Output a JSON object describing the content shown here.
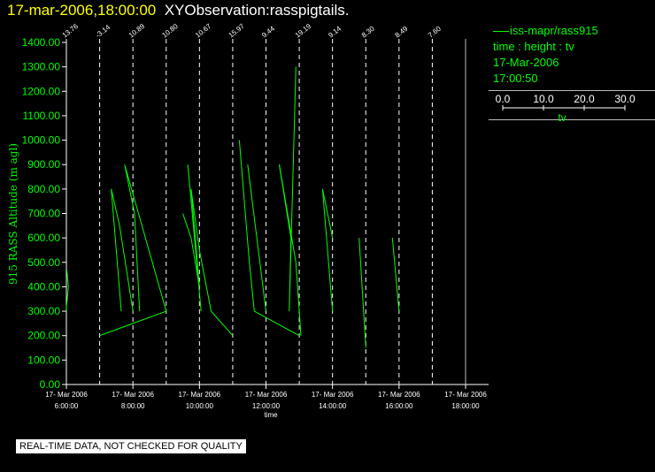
{
  "title": {
    "timestamp": "17-mar-2006,18:00:00",
    "name": "XYObservation:rasspigtails."
  },
  "legend": {
    "series_label": "iss-mapr/rass915",
    "line1": "time : height : tv",
    "line2": "17-Mar-2006",
    "line3": "17:00:50",
    "scale_ticks": [
      "0.0",
      "10.0",
      "20.0",
      "30.0"
    ],
    "scale_label": "tv",
    "colors": {
      "text": "#00ff00",
      "line": "#00ff00"
    }
  },
  "footnote": "REAL-TIME DATA, NOT CHECKED FOR QUALITY",
  "chart_data": {
    "type": "line",
    "xlabel": "time",
    "ylabel": "915 RASS Altitude (m agl)",
    "ylim": [
      0,
      1400
    ],
    "yticks": [
      "0.00",
      "100.00",
      "200.00",
      "300.00",
      "400.00",
      "500.00",
      "600.00",
      "700.00",
      "800.00",
      "900.00",
      "1000.00",
      "1100.00",
      "1200.00",
      "1300.00",
      "1400.00"
    ],
    "xlim": [
      6,
      18
    ],
    "xticks": [
      {
        "x": 6,
        "date": "17- Mar 2006",
        "time": "6:00:00"
      },
      {
        "x": 8,
        "date": "17- Mar 2006",
        "time": "8:00:00"
      },
      {
        "x": 10,
        "date": "17- Mar 2006",
        "time": "10:00:00"
      },
      {
        "x": 12,
        "date": "17- Mar 2006",
        "time": "12:00:00"
      },
      {
        "x": 14,
        "date": "17- Mar 2006",
        "time": "14:00:00"
      },
      {
        "x": 16,
        "date": "17- Mar 2006",
        "time": "16:00:00"
      },
      {
        "x": 18,
        "date": "17- Mar 2006",
        "time": "18:00:00"
      }
    ],
    "profiles": [
      {
        "x": 6.0,
        "label": "13.76"
      },
      {
        "x": 7.0,
        "label": "-3.14"
      },
      {
        "x": 8.0,
        "label": "10.89"
      },
      {
        "x": 9.0,
        "label": "10.80"
      },
      {
        "x": 10.0,
        "label": "10.67"
      },
      {
        "x": 11.0,
        "label": "15.97"
      },
      {
        "x": 12.0,
        "label": "9.44"
      },
      {
        "x": 13.0,
        "label": "19.19"
      },
      {
        "x": 14.0,
        "label": "9.14"
      },
      {
        "x": 15.0,
        "label": "8.30"
      },
      {
        "x": 16.0,
        "label": "8.49"
      },
      {
        "x": 17.0,
        "label": "7.60"
      }
    ],
    "grid": "dashed vertical at each profile time",
    "series": [
      {
        "color": "#00ff00",
        "segments": [
          [
            [
              5.99,
              300
            ],
            [
              6.06,
              400
            ],
            [
              6.01,
              470
            ]
          ],
          [
            [
              7.0,
              200
            ],
            [
              8.0,
              250
            ],
            [
              9.0,
              300
            ],
            [
              7.75,
              900
            ],
            [
              8.05,
              700
            ],
            [
              8.2,
              300
            ]
          ],
          [
            [
              7.35,
              800
            ],
            [
              7.65,
              300
            ]
          ],
          [
            [
              7.35,
              800
            ],
            [
              7.6,
              650
            ],
            [
              8.0,
              300
            ]
          ],
          [
            [
              9.5,
              700
            ],
            [
              9.75,
              600
            ],
            [
              10.0,
              400
            ],
            [
              9.75,
              800
            ]
          ],
          [
            [
              9.75,
              800
            ],
            [
              10.0,
              550
            ],
            [
              10.35,
              300
            ],
            [
              11.0,
              200
            ]
          ],
          [
            [
              9.65,
              900
            ],
            [
              10.05,
              300
            ]
          ],
          [
            [
              11.2,
              1000
            ],
            [
              11.5,
              500
            ],
            [
              11.65,
              300
            ],
            [
              13.0,
              200
            ]
          ],
          [
            [
              11.45,
              900
            ],
            [
              12.0,
              300
            ]
          ],
          [
            [
              12.4,
              900
            ],
            [
              12.75,
              600
            ],
            [
              12.7,
              300
            ],
            [
              12.9,
              1300
            ]
          ],
          [
            [
              12.4,
              900
            ],
            [
              12.9,
              500
            ],
            [
              13.05,
              200
            ]
          ],
          [
            [
              13.7,
              800
            ],
            [
              14.0,
              300
            ]
          ],
          [
            [
              14.8,
              600
            ],
            [
              15.0,
              150
            ]
          ],
          [
            [
              15.8,
              600
            ],
            [
              16.0,
              300
            ]
          ],
          [
            [
              13.7,
              800
            ],
            [
              14.0,
              600
            ]
          ]
        ]
      }
    ]
  }
}
